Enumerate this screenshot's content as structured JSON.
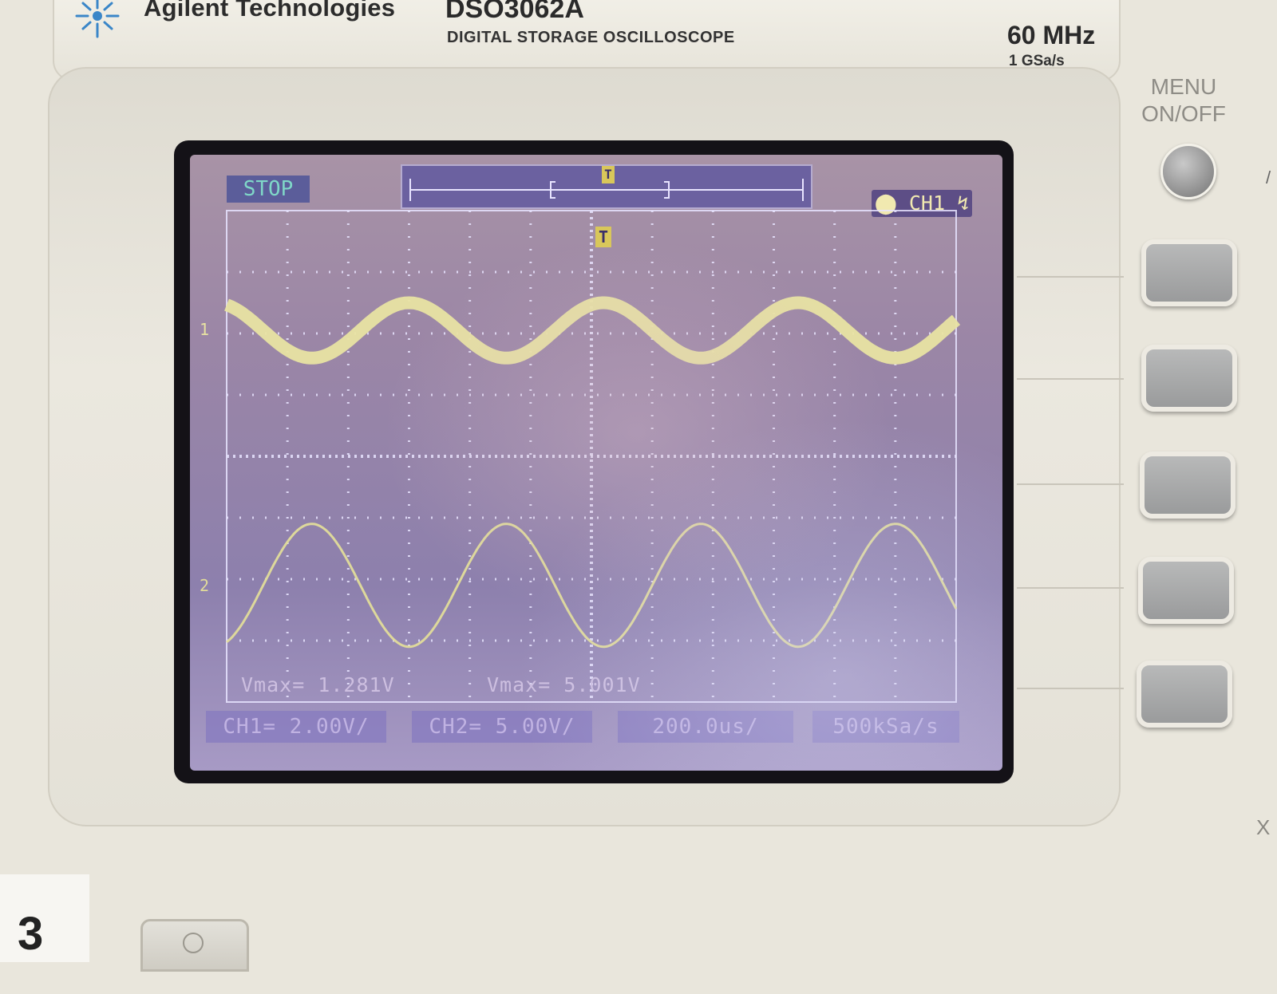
{
  "header": {
    "brand": "Agilent Technologies",
    "model": "DSO3062A",
    "subtitle": "DIGITAL STORAGE OSCILLOSCOPE",
    "bandwidth": "60 MHz",
    "sample_rate": "1 GSa/s"
  },
  "panel": {
    "menu_label_line1": "MENU",
    "menu_label_line2": "ON/OFF",
    "corner_label": "3"
  },
  "screen": {
    "status": "STOP",
    "trigger_source": "CH1",
    "trigger_marker": "T",
    "channel1_marker": "1",
    "channel2_marker": "2",
    "measurements": [
      {
        "label": "Vmax= 1.281V"
      },
      {
        "label": "Vmax= 5.001V"
      }
    ],
    "softkeys": {
      "ch1": "CH1= 2.00V/",
      "ch2": "CH2= 5.00V/",
      "timebase": "200.0us/",
      "acq_rate": "500kSa/s"
    },
    "colors": {
      "trace1": "#e8e3a2",
      "trace2": "#e2dc9a",
      "grid": "#e8e4ff",
      "background": "#9b86a6"
    }
  },
  "chart_data": {
    "type": "line",
    "series": [
      {
        "name": "1",
        "channel": "CH1",
        "amplitude_div": 0.45,
        "center_div": 2.05,
        "period_div": 3.2,
        "phase_div": 0.6
      },
      {
        "name": "2",
        "channel": "CH2",
        "amplitude_div": 1.0,
        "center_div": -2.1,
        "period_div": 3.2,
        "phase_div": 2.2
      }
    ],
    "xlim_div": [
      -6,
      6
    ],
    "ylim_div": [
      -4,
      4
    ],
    "grid": true
  }
}
